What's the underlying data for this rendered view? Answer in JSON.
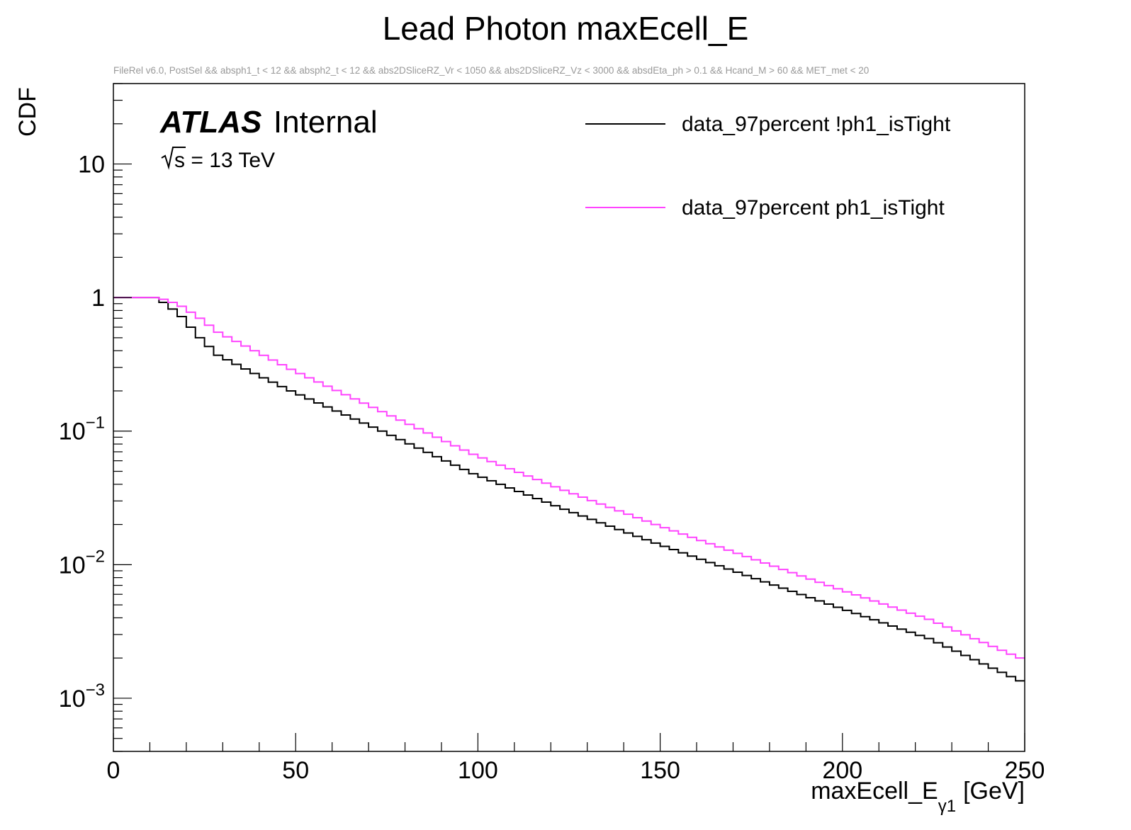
{
  "chart_data": {
    "type": "line",
    "title": "Lead Photon maxEcell_E",
    "subtitle": "FileRel v6.0, PostSel &&  absph1_t < 12 && absph2_t < 12 && abs2DSliceRZ_Vr < 1050 && abs2DSliceRZ_Vz < 3000 && absdEta_ph > 0.1 && Hcand_M > 60 && MET_met < 20",
    "atlas_label": "ATLAS",
    "atlas_status": "Internal",
    "energy_label": "s = 13 TeV",
    "xlabel": "maxEcell_E",
    "xlabel_sub": "γ1",
    "xlabel_unit": "[GeV]",
    "ylabel": "CDF",
    "xlim": [
      0,
      250
    ],
    "ylim": [
      0.0004,
      40
    ],
    "yscale": "log",
    "step_style": "histogram-step",
    "bin_width": 2.5,
    "x_ticks": [
      0,
      50,
      100,
      150,
      200,
      250
    ],
    "y_ticks": [
      {
        "base": "10",
        "exp": "−3",
        "value": 0.001
      },
      {
        "base": "10",
        "exp": "−2",
        "value": 0.01
      },
      {
        "base": "10",
        "exp": "−1",
        "value": 0.1
      },
      {
        "base": "1",
        "exp": "",
        "value": 1
      },
      {
        "base": "10",
        "exp": "",
        "value": 10
      }
    ],
    "legend_position": "top-right",
    "series": [
      {
        "name": "data_97percent !ph1_isTight",
        "color": "#000000",
        "x": [
          0,
          12.5,
          15,
          17.5,
          20,
          25,
          30,
          40,
          50,
          75,
          100,
          125,
          150,
          175,
          200,
          225,
          250
        ],
        "values": [
          1.0,
          1.0,
          0.92,
          0.82,
          0.72,
          0.5,
          0.37,
          0.27,
          0.2,
          0.1,
          0.048,
          0.026,
          0.0145,
          0.0083,
          0.0048,
          0.0028,
          0.00135
        ]
      },
      {
        "name": "data_97percent ph1_isTight",
        "color": "#ff44ff",
        "x": [
          0,
          12.5,
          15,
          17.5,
          20,
          25,
          30,
          40,
          50,
          75,
          100,
          125,
          150,
          175,
          200,
          225,
          250
        ],
        "values": [
          1.0,
          1.0,
          0.97,
          0.92,
          0.86,
          0.7,
          0.55,
          0.4,
          0.29,
          0.14,
          0.067,
          0.036,
          0.02,
          0.0115,
          0.0066,
          0.0039,
          0.002
        ]
      }
    ]
  }
}
